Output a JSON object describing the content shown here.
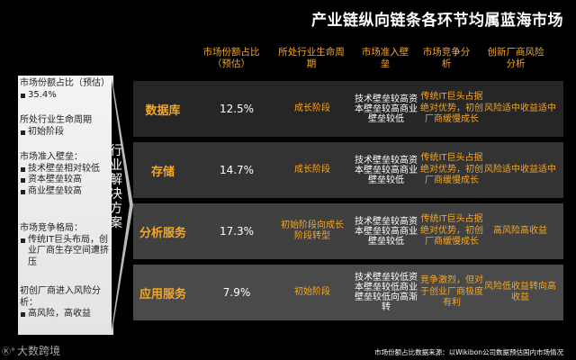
{
  "title": "产业链纵向链条各环节均属蓝海市场",
  "headers": [
    "市场份额占比（预估）",
    "所处行业生命周期",
    "市场准入壁垒",
    "市场竞争分析",
    "创新厂商风险分析"
  ],
  "vertical_label": "行业解决方案",
  "legend": [
    {
      "head": "市场份额占比（预估）",
      "items": [
        "35.4%"
      ]
    },
    {
      "head": "所处行业生命周期",
      "items": [
        "初始阶段"
      ]
    },
    {
      "head": "市场准入壁垒：",
      "items": [
        "技术壁垒相对较低",
        "资本壁垒较高",
        "商业壁垒较高"
      ]
    },
    {
      "head": "市场竞争格局：",
      "items": [
        "传统IT巨头布局，创业厂商生存空间遭挤压"
      ]
    },
    {
      "head": "初创厂商进入风险分析：",
      "items": [
        "高风险，高收益"
      ]
    }
  ],
  "rows": [
    {
      "name": "数据库",
      "share": "12.5%",
      "stage": "成长阶段",
      "barrier": "技术壁垒较高资本壁垒较高商业壁垒较低",
      "competition": "传统IT巨头占据绝对优势，初创厂商缓慢成长",
      "risk": "风险适中收益适中",
      "bg": "#262626"
    },
    {
      "name": "存储",
      "share": "14.7%",
      "stage": "成长阶段",
      "barrier": "技术壁垒较高资本壁垒较高商业壁垒较低",
      "competition": "传统IT巨头占据绝对优势，初创厂商缓慢成长",
      "risk": "风险适中收益适中",
      "bg": "#333333"
    },
    {
      "name": "分析服务",
      "share": "17.3%",
      "stage": "初始阶段向成长阶段转型",
      "barrier": "技术壁垒较高资本壁垒较高商业壁垒较低",
      "competition": "传统IT巨头占据绝对优势，初创厂商缓慢成长",
      "risk": "高风险高收益",
      "bg": "#404040"
    },
    {
      "name": "应用服务",
      "share": "7.9%",
      "stage": "初始阶段",
      "barrier": "技术壁垒较低资本壁垒较低商业壁垒较低向高渐转",
      "competition": "竞争激烈，但对于创业厂商极度有利",
      "risk": "风险低收益转向高收益",
      "bg": "#4a4a4a"
    }
  ],
  "footnote": "市场份额占比数据来源：以Wikibon公司数据预估国内市场情况",
  "logo": {
    "mark": "Ⓚ°",
    "text": "大数跨境"
  },
  "colors": {
    "accent": "#f5a623",
    "background": "#000000"
  }
}
